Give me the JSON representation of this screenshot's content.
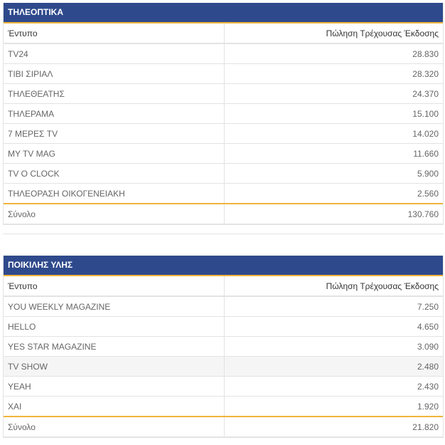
{
  "tables": [
    {
      "title": "ΤΗΛΕΟΠΤΙΚΑ",
      "col_name": "Έντυπο",
      "col_value": "Πώληση Τρέχουσας Έκδοσης",
      "rows": [
        {
          "name": "TV24",
          "value": "28.830"
        },
        {
          "name": "ΤΙΒΙ ΣΙΡΙΑΛ",
          "value": "28.320"
        },
        {
          "name": "ΤΗΛΕΘΕΑΤΗΣ",
          "value": "24.370"
        },
        {
          "name": "ΤΗΛΕΡΑΜΑ",
          "value": "15.100"
        },
        {
          "name": "7 ΜΕΡΕΣ TV",
          "value": "14.020"
        },
        {
          "name": "MY TV MAG",
          "value": "11.660"
        },
        {
          "name": "TV O CLOCK",
          "value": "5.900"
        },
        {
          "name": "ΤΗΛΕΟΡΑΣΗ ΟΙΚΟΓΕΝΕΙΑΚΗ",
          "value": "2.560"
        }
      ],
      "total_label": "Σύνολο",
      "total_value": "130.760"
    },
    {
      "title": "ΠΟΙΚΙΛΗΣ ΥΛΗΣ",
      "col_name": "Έντυπο",
      "col_value": "Πώληση Τρέχουσας Έκδοσης",
      "rows": [
        {
          "name": "YOU WEEKLY MAGAZINE",
          "value": "7.250"
        },
        {
          "name": "HELLO",
          "value": "4.650"
        },
        {
          "name": "YES STAR MAGAZINE",
          "value": "3.090"
        },
        {
          "name": "TV SHOW",
          "value": "2.480"
        },
        {
          "name": "YEAH",
          "value": "2.430"
        },
        {
          "name": "XAI",
          "value": "1.920"
        }
      ],
      "total_label": "Σύνολο",
      "total_value": "21.820"
    }
  ],
  "colors": {
    "header_bg": "#2f4a8c",
    "accent": "#f0b43c",
    "border": "#e3e3e3",
    "text": "#666666"
  }
}
